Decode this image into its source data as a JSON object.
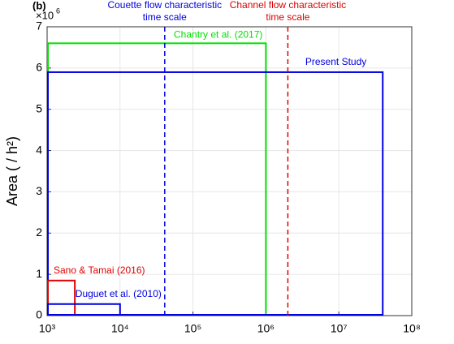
{
  "chart_data": {
    "type": "rectangle",
    "panel_label": "(b)",
    "ylabel": "Area ( / h²)",
    "y_multiplier": {
      "base": "×10",
      "exponent": "6"
    },
    "xscale": "log",
    "grid": true,
    "xlim": [
      1000,
      100000000
    ],
    "ylim": [
      0,
      7
    ],
    "xticks": [
      {
        "value": 1000,
        "label": "10³"
      },
      {
        "value": 10000,
        "label": "10⁴"
      },
      {
        "value": 100000,
        "label": "10⁵"
      },
      {
        "value": 1000000,
        "label": "10⁶"
      },
      {
        "value": 10000000,
        "label": "10⁷"
      },
      {
        "value": 100000000,
        "label": "10⁸"
      }
    ],
    "yticks": [
      0,
      1,
      2,
      3,
      4,
      5,
      6,
      7
    ],
    "series": [
      {
        "name": "Chantry et al. (2017)",
        "color": "#00e000",
        "x_range": [
          1000,
          1000000
        ],
        "height": 6.6
      },
      {
        "name": "Present Study",
        "color": "#0000e0",
        "x_range": [
          1000,
          40000000
        ],
        "height": 5.9
      },
      {
        "name": "Sano & Tamai (2016)",
        "color": "#e00000",
        "x_range": [
          1000,
          2400
        ],
        "height": 0.85
      },
      {
        "name": "Duguet et al. (2010)",
        "color": "#0000e0",
        "x_range": [
          1000,
          10000
        ],
        "height": 0.28
      }
    ],
    "vlines": [
      {
        "x": 41000,
        "color": "#0000e0",
        "label": [
          "Couette flow characteristic",
          "time scale"
        ]
      },
      {
        "x": 2000000,
        "color": "#e00000",
        "label": [
          "Channel flow characteristic",
          "time scale"
        ]
      }
    ]
  }
}
